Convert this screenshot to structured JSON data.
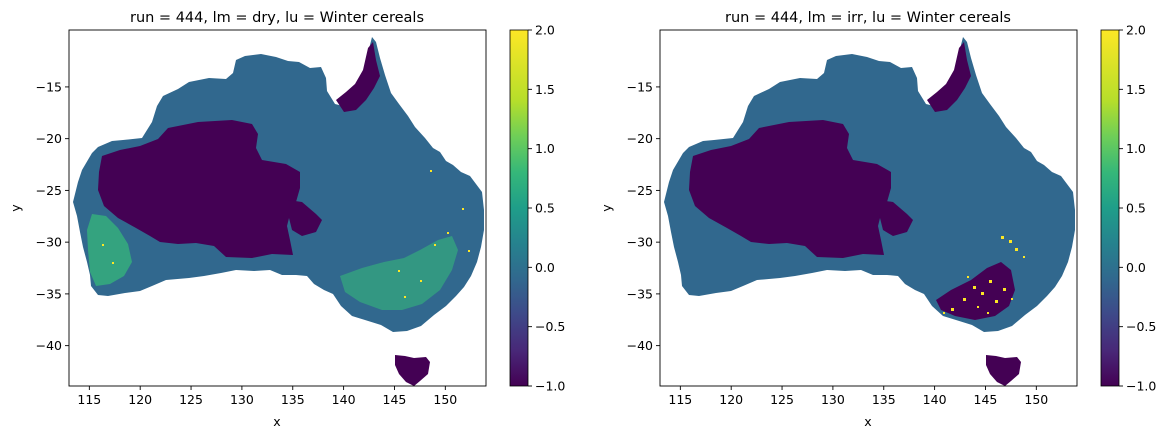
{
  "chart_data": [
    {
      "type": "heatmap",
      "title": "run = 444, lm = dry, lu = Winter cereals",
      "xlabel": "x",
      "ylabel": "y",
      "xlim": [
        113,
        154
      ],
      "ylim": [
        -43.9,
        -9.5
      ],
      "x_ticks": [
        115,
        120,
        125,
        130,
        135,
        140,
        145,
        150
      ],
      "y_ticks": [
        -15,
        -20,
        -25,
        -30,
        -35,
        -40
      ],
      "colorbar": {
        "colormap": "viridis",
        "range": [
          -1.0,
          2.0
        ],
        "ticks": [
          -1.0,
          -0.5,
          0.0,
          0.5,
          1.0,
          1.5,
          2.0
        ],
        "tick_labels": [
          "−1.0",
          "−0.5",
          "0.0",
          "0.5",
          "1.0",
          "1.5",
          "2.0"
        ]
      },
      "colors": {
        "value_neg1": "#440154",
        "value_0": "#31688e",
        "value_1": "#35b779",
        "value_2": "#fde725"
      },
      "value_regions": [
        {
          "name": "interior arid zone",
          "value": -1.0
        },
        {
          "name": "cape york belt",
          "value": -1.0
        },
        {
          "name": "tasmania",
          "value": -1.0
        },
        {
          "name": "remaining continent",
          "value": 0.0
        },
        {
          "name": "south-west wheatbelt",
          "value": 0.9
        },
        {
          "name": "murray-darling and victoria",
          "value": 0.8
        }
      ]
    },
    {
      "type": "heatmap",
      "title": "run = 444, lm = irr, lu = Winter cereals",
      "xlabel": "x",
      "ylabel": "y",
      "xlim": [
        113,
        154
      ],
      "ylim": [
        -43.9,
        -9.5
      ],
      "x_ticks": [
        115,
        120,
        125,
        130,
        135,
        140,
        145,
        150
      ],
      "y_ticks": [
        -15,
        -20,
        -25,
        -30,
        -35,
        -40
      ],
      "colorbar": {
        "colormap": "viridis",
        "range": [
          -1.0,
          2.0
        ],
        "ticks": [
          -1.0,
          -0.5,
          0.0,
          0.5,
          1.0,
          1.5,
          2.0
        ],
        "tick_labels": [
          "−1.0",
          "−0.5",
          "0.0",
          "0.5",
          "1.0",
          "1.5",
          "2.0"
        ]
      },
      "colors": {
        "value_neg1": "#440154",
        "value_0": "#31688e",
        "value_1": "#35b779",
        "value_2": "#fde725"
      },
      "value_regions": [
        {
          "name": "interior arid zone",
          "value": -1.0
        },
        {
          "name": "cape york belt",
          "value": -1.0
        },
        {
          "name": "tasmania",
          "value": -1.0
        },
        {
          "name": "murray-darling irrigation",
          "value": -1.0
        },
        {
          "name": "remaining continent",
          "value": 0.0
        },
        {
          "name": "irrigated hotspots",
          "value": 2.0
        }
      ]
    }
  ]
}
